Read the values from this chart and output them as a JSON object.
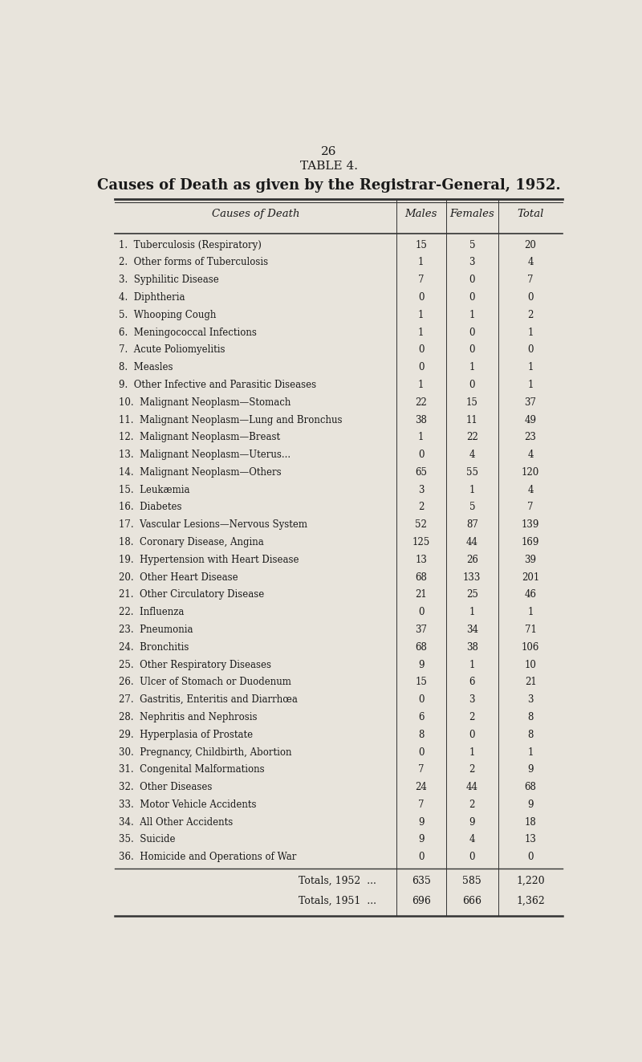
{
  "page_number": "26",
  "table_title": "TABLE 4.",
  "subtitle": "Causes of Death as given by the Registrar-General, 1952.",
  "col_header": [
    "Causes of Death",
    "Males",
    "Females",
    "Total"
  ],
  "rows": [
    [
      "1.  Tuberculosis (Respiratory)",
      15,
      5,
      20
    ],
    [
      "2.  Other forms of Tuberculosis",
      1,
      3,
      4
    ],
    [
      "3.  Syphilitic Disease",
      7,
      0,
      7
    ],
    [
      "4.  Diphtheria",
      0,
      0,
      0
    ],
    [
      "5.  Whooping Cough",
      1,
      1,
      2
    ],
    [
      "6.  Meningococcal Infections",
      1,
      0,
      1
    ],
    [
      "7.  Acute Poliomyelitis",
      0,
      0,
      0
    ],
    [
      "8.  Measles",
      0,
      1,
      1
    ],
    [
      "9.  Other Infective and Parasitic Diseases",
      1,
      0,
      1
    ],
    [
      "10.  Malignant Neoplasm—Stomach",
      22,
      15,
      37
    ],
    [
      "11.  Malignant Neoplasm—Lung and Bronchus",
      38,
      11,
      49
    ],
    [
      "12.  Malignant Neoplasm—Breast",
      1,
      22,
      23
    ],
    [
      "13.  Malignant Neoplasm—Uterus...",
      0,
      4,
      4
    ],
    [
      "14.  Malignant Neoplasm—Others",
      65,
      55,
      120
    ],
    [
      "15.  Leukæmia",
      3,
      1,
      4
    ],
    [
      "16.  Diabetes",
      2,
      5,
      7
    ],
    [
      "17.  Vascular Lesions—Nervous System",
      52,
      87,
      139
    ],
    [
      "18.  Coronary Disease, Angina",
      125,
      44,
      169
    ],
    [
      "19.  Hypertension with Heart Disease",
      13,
      26,
      39
    ],
    [
      "20.  Other Heart Disease",
      68,
      133,
      201
    ],
    [
      "21.  Other Circulatory Disease",
      21,
      25,
      46
    ],
    [
      "22.  Influenza",
      0,
      1,
      1
    ],
    [
      "23.  Pneumonia",
      37,
      34,
      71
    ],
    [
      "24.  Bronchitis",
      68,
      38,
      106
    ],
    [
      "25.  Other Respiratory Diseases",
      9,
      1,
      10
    ],
    [
      "26.  Ulcer of Stomach or Duodenum",
      15,
      6,
      21
    ],
    [
      "27.  Gastritis, Enteritis and Diarrhœa",
      0,
      3,
      3
    ],
    [
      "28.  Nephritis and Nephrosis",
      6,
      2,
      8
    ],
    [
      "29.  Hyperplasia of Prostate",
      8,
      0,
      8
    ],
    [
      "30.  Pregnancy, Childbirth, Abortion",
      0,
      1,
      1
    ],
    [
      "31.  Congenital Malformations",
      7,
      2,
      9
    ],
    [
      "32.  Other Diseases",
      24,
      44,
      68
    ],
    [
      "33.  Motor Vehicle Accidents",
      7,
      2,
      9
    ],
    [
      "34.  All Other Accidents",
      9,
      9,
      18
    ],
    [
      "35.  Suicide",
      9,
      4,
      13
    ],
    [
      "36.  Homicide and Operations of War",
      0,
      0,
      0
    ]
  ],
  "totals_1952": [
    "Totals, 1952",
    635,
    585,
    "1,220"
  ],
  "totals_1951": [
    "Totals, 1951",
    696,
    666,
    "1,362"
  ],
  "bg_color": "#e8e4dc",
  "text_color": "#1a1a1a",
  "line_color": "#333333",
  "font_size_title": 11,
  "font_size_subtitle": 13,
  "font_size_table": 8.5,
  "font_size_header": 9.5
}
